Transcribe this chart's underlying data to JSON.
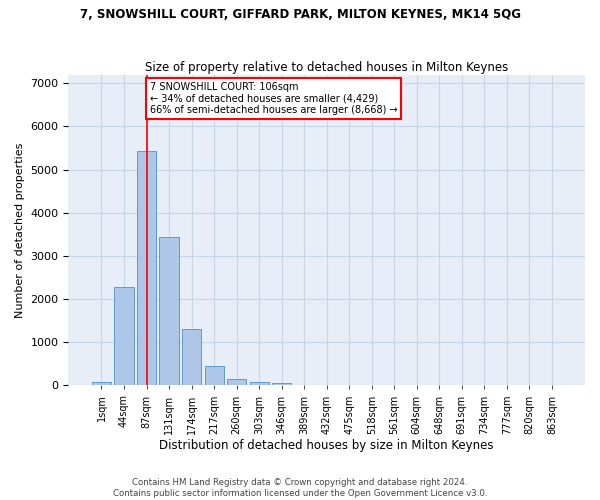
{
  "title": "7, SNOWSHILL COURT, GIFFARD PARK, MILTON KEYNES, MK14 5QG",
  "subtitle": "Size of property relative to detached houses in Milton Keynes",
  "xlabel": "Distribution of detached houses by size in Milton Keynes",
  "ylabel": "Number of detached properties",
  "footer_line1": "Contains HM Land Registry data © Crown copyright and database right 2024.",
  "footer_line2": "Contains public sector information licensed under the Open Government Licence v3.0.",
  "bar_labels": [
    "1sqm",
    "44sqm",
    "87sqm",
    "131sqm",
    "174sqm",
    "217sqm",
    "260sqm",
    "303sqm",
    "346sqm",
    "389sqm",
    "432sqm",
    "475sqm",
    "518sqm",
    "561sqm",
    "604sqm",
    "648sqm",
    "691sqm",
    "734sqm",
    "777sqm",
    "820sqm",
    "863sqm"
  ],
  "bar_values": [
    80,
    2290,
    5440,
    3450,
    1310,
    460,
    155,
    80,
    45,
    0,
    0,
    0,
    0,
    0,
    0,
    0,
    0,
    0,
    0,
    0,
    0
  ],
  "bar_color": "#aec6e8",
  "bar_edge_color": "#5b9bd5",
  "grid_color": "#c8d4e8",
  "background_color": "#e8eef8",
  "annotation_box_text": "7 SNOWSHILL COURT: 106sqm\n← 34% of detached houses are smaller (4,429)\n66% of semi-detached houses are larger (8,668) →",
  "annotation_box_color": "white",
  "annotation_box_edge_color": "red",
  "vline_x_idx": 2,
  "vline_color": "red",
  "ylim": [
    0,
    7200
  ],
  "yticks": [
    0,
    1000,
    2000,
    3000,
    4000,
    5000,
    6000,
    7000
  ]
}
